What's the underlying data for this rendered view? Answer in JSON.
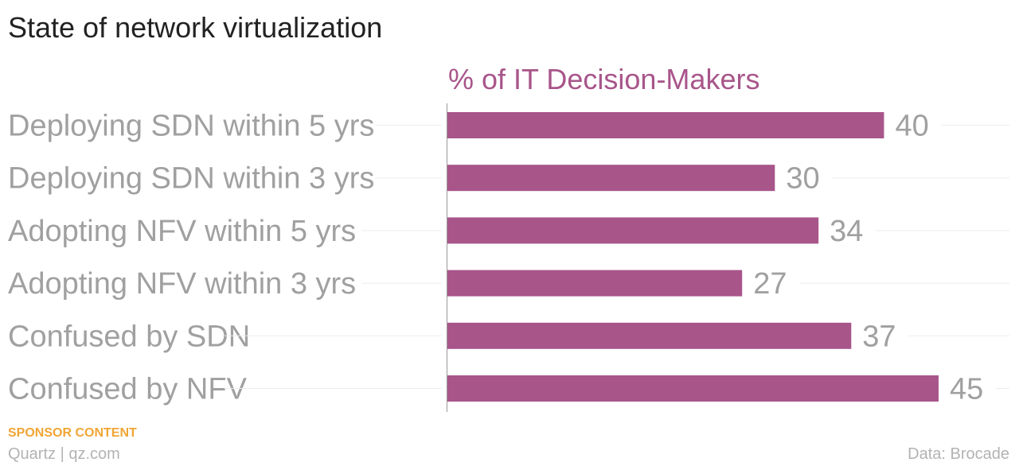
{
  "header": {
    "title": "State of network virtualization"
  },
  "chart_data": {
    "type": "bar",
    "orientation": "horizontal",
    "title": "State of network virtualization",
    "series_label": "% of IT Decision-Makers",
    "categories": [
      "Deploying SDN within 5 yrs",
      "Deploying SDN within 3 yrs",
      "Adopting NFV within 5 yrs",
      "Adopting NFV within 3 yrs",
      "Confused by SDN",
      "Confused by NFV"
    ],
    "values": [
      40,
      30,
      34,
      27,
      37,
      45
    ],
    "xlim": [
      0,
      52
    ],
    "data_labels": true,
    "grid": false,
    "bar_color": "#a8558a",
    "label_color": "#a0a0a0",
    "series_label_color": "#a8558a"
  },
  "footer": {
    "sponsor": "SPONSOR CONTENT",
    "credit": "Quartz | qz.com",
    "source": "Data: Brocade"
  }
}
